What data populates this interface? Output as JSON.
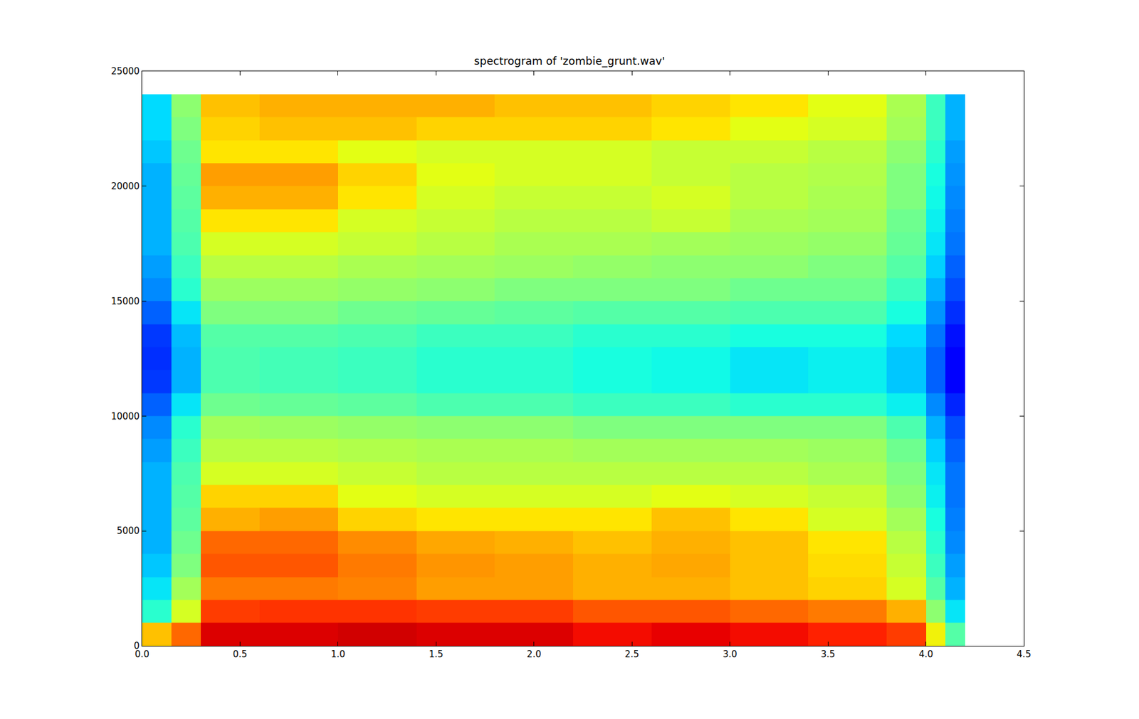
{
  "chart_data": {
    "type": "heatmap",
    "title": "spectrogram of 'zombie_grunt.wav'",
    "time_edges": [
      0,
      0.15,
      0.3,
      0.6,
      1.0,
      1.4,
      1.8,
      2.2,
      2.6,
      3.0,
      3.4,
      3.8,
      4.0,
      4.1,
      4.2
    ],
    "freq_edges": [
      0,
      1000,
      2000,
      3000,
      4000,
      5000,
      6000,
      7000,
      8000,
      9000,
      10000,
      11000,
      12000,
      13000,
      14000,
      15000,
      16000,
      17000,
      18000,
      19000,
      20000,
      21000,
      22000,
      23000,
      24000
    ],
    "cells": [
      [
        70,
        80,
        92,
        92,
        93,
        92,
        92,
        90,
        91,
        90,
        88,
        85,
        65,
        45
      ],
      [
        40,
        62,
        85,
        86,
        86,
        85,
        85,
        82,
        82,
        80,
        78,
        72,
        52,
        35
      ],
      [
        35,
        55,
        78,
        78,
        77,
        74,
        74,
        72,
        72,
        70,
        68,
        62,
        45,
        30
      ],
      [
        32,
        50,
        82,
        82,
        78,
        75,
        74,
        72,
        73,
        70,
        67,
        60,
        42,
        28
      ],
      [
        30,
        48,
        80,
        80,
        76,
        73,
        72,
        70,
        72,
        70,
        66,
        58,
        40,
        26
      ],
      [
        30,
        46,
        72,
        74,
        68,
        66,
        66,
        66,
        70,
        66,
        62,
        55,
        38,
        25
      ],
      [
        30,
        45,
        68,
        68,
        64,
        62,
        62,
        62,
        64,
        62,
        60,
        52,
        36,
        24
      ],
      [
        30,
        44,
        62,
        62,
        60,
        58,
        58,
        58,
        58,
        58,
        56,
        50,
        35,
        24
      ],
      [
        28,
        42,
        58,
        58,
        57,
        56,
        56,
        55,
        55,
        55,
        54,
        48,
        33,
        22
      ],
      [
        26,
        40,
        55,
        54,
        53,
        52,
        52,
        50,
        50,
        50,
        50,
        44,
        30,
        20
      ],
      [
        22,
        35,
        48,
        47,
        46,
        44,
        44,
        42,
        42,
        40,
        40,
        36,
        26,
        16
      ],
      [
        18,
        30,
        44,
        43,
        42,
        40,
        40,
        38,
        37,
        35,
        36,
        32,
        22,
        12
      ],
      [
        17,
        30,
        44,
        43,
        42,
        40,
        40,
        38,
        37,
        35,
        36,
        32,
        22,
        12
      ],
      [
        18,
        31,
        45,
        45,
        44,
        42,
        42,
        40,
        40,
        38,
        38,
        34,
        24,
        14
      ],
      [
        22,
        35,
        50,
        50,
        48,
        47,
        46,
        45,
        45,
        44,
        44,
        38,
        27,
        17
      ],
      [
        26,
        40,
        54,
        54,
        53,
        52,
        50,
        50,
        50,
        48,
        48,
        42,
        30,
        20
      ],
      [
        28,
        42,
        58,
        58,
        56,
        55,
        54,
        53,
        52,
        52,
        50,
        45,
        33,
        22
      ],
      [
        30,
        44,
        62,
        62,
        60,
        58,
        56,
        56,
        55,
        54,
        53,
        47,
        35,
        24
      ],
      [
        30,
        45,
        66,
        66,
        62,
        60,
        58,
        58,
        60,
        56,
        55,
        48,
        36,
        25
      ],
      [
        30,
        46,
        72,
        72,
        66,
        62,
        60,
        60,
        62,
        58,
        56,
        50,
        37,
        26
      ],
      [
        30,
        47,
        74,
        74,
        68,
        64,
        62,
        62,
        60,
        58,
        57,
        50,
        38,
        27
      ],
      [
        32,
        48,
        66,
        66,
        64,
        62,
        62,
        62,
        60,
        60,
        58,
        52,
        40,
        28
      ],
      [
        34,
        50,
        68,
        70,
        70,
        68,
        68,
        68,
        66,
        64,
        62,
        55,
        42,
        30
      ],
      [
        34,
        52,
        70,
        72,
        72,
        72,
        70,
        70,
        68,
        66,
        64,
        56,
        42,
        30
      ]
    ],
    "zlim": [
      0,
      100
    ],
    "xlim": [
      0,
      4.5
    ],
    "xticks": [
      {
        "value": 0,
        "label": "0.0"
      },
      0.5,
      {
        "value": 1,
        "label": "1.0"
      },
      1.5,
      {
        "value": 2,
        "label": "2.0"
      },
      2.5,
      {
        "value": 3,
        "label": "3.0"
      },
      3.5,
      {
        "value": 4,
        "label": "4.0"
      },
      4.5
    ],
    "ylim": [
      0,
      25000
    ],
    "yticks": [
      0,
      5000,
      10000,
      15000,
      20000,
      25000
    ],
    "grid": false
  }
}
